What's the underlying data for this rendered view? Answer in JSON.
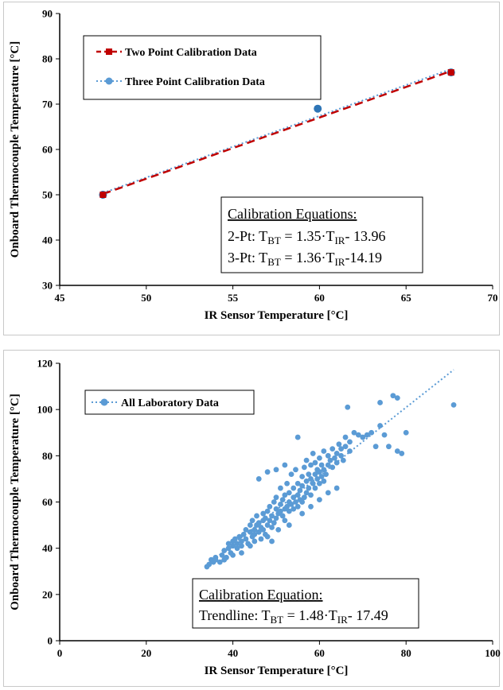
{
  "colors": {
    "two_point": "#c00000",
    "three_point": "#5b9bd5",
    "three_point_marker": "#2e75b6",
    "lab": "#5b9bd5",
    "axis": "#000000"
  },
  "chart_data": [
    {
      "type": "line",
      "xlabel": "IR Sensor Temperature [°C]",
      "ylabel": "Onboard Thermocouple Temperature [°C]",
      "xlim": [
        45,
        70
      ],
      "ylim": [
        30,
        90
      ],
      "xticks": [
        45,
        50,
        55,
        60,
        65,
        70
      ],
      "yticks": [
        30,
        40,
        50,
        60,
        70,
        80,
        90
      ],
      "grid": false,
      "legend_position": "top-left",
      "series": [
        {
          "name": "Two Point Calibration Data",
          "style": "dashed",
          "marker": "square",
          "x": [
            47.5,
            67.6
          ],
          "y": [
            50.0,
            77.0
          ],
          "fit": {
            "slope": 1.35,
            "intercept": -13.96
          }
        },
        {
          "name": "Three Point Calibration Data",
          "style": "dotted",
          "marker": "circle",
          "x": [
            47.5,
            59.9,
            67.6
          ],
          "y": [
            50.0,
            69.0,
            77.0
          ],
          "fit": {
            "slope": 1.36,
            "intercept": -14.19
          }
        }
      ],
      "annotation": {
        "heading": "Calibration Equations:",
        "lines": [
          {
            "prefix": "2-Pt: T",
            "sub1": "BT",
            "mid": " = 1.35·T",
            "sub2": "IR",
            "suffix": "- 13.96"
          },
          {
            "prefix": "3-Pt: T",
            "sub1": "BT",
            "mid": " = 1.36·T",
            "sub2": "IR",
            "suffix": "-14.19"
          }
        ]
      }
    },
    {
      "type": "scatter",
      "xlabel": "IR Sensor Temperature [°C]",
      "ylabel": "Onboard Thermocouple Temperature [°C]",
      "xlim": [
        0,
        100
      ],
      "ylim": [
        0,
        120
      ],
      "xticks": [
        0,
        20,
        40,
        60,
        80,
        100
      ],
      "yticks": [
        0,
        20,
        40,
        60,
        80,
        100,
        120
      ],
      "grid": false,
      "legend_position": "top-left",
      "series": [
        {
          "name": "All Laboratory Data",
          "trendline": {
            "slope": 1.48,
            "intercept": -17.49,
            "x_range": [
              34,
              91
            ]
          },
          "points": [
            [
              34,
              32
            ],
            [
              34.5,
              33
            ],
            [
              35,
              35
            ],
            [
              35.5,
              34
            ],
            [
              36,
              36
            ],
            [
              37,
              34
            ],
            [
              37.5,
              37
            ],
            [
              38,
              39
            ],
            [
              38.5,
              36
            ],
            [
              39,
              40
            ],
            [
              39,
              42
            ],
            [
              39.5,
              38
            ],
            [
              40,
              43
            ],
            [
              40,
              41
            ],
            [
              40.5,
              44
            ],
            [
              41,
              40
            ],
            [
              41,
              42
            ],
            [
              41.5,
              45
            ],
            [
              42,
              43
            ],
            [
              42,
              38
            ],
            [
              42.5,
              46
            ],
            [
              43,
              44
            ],
            [
              43,
              48
            ],
            [
              43.5,
              42
            ],
            [
              44,
              47
            ],
            [
              44,
              50
            ],
            [
              44.5,
              45
            ],
            [
              44.5,
              52
            ],
            [
              45,
              48
            ],
            [
              45,
              46
            ],
            [
              45,
              43
            ],
            [
              45.5,
              50
            ],
            [
              45.5,
              54
            ],
            [
              46,
              47
            ],
            [
              46,
              51
            ],
            [
              46.5,
              49
            ],
            [
              46.5,
              44
            ],
            [
              47,
              52
            ],
            [
              47,
              48
            ],
            [
              47,
              55
            ],
            [
              47.5,
              46
            ],
            [
              47.5,
              53
            ],
            [
              48,
              50
            ],
            [
              48,
              56
            ],
            [
              48,
              45
            ],
            [
              48.5,
              52
            ],
            [
              48.5,
              58
            ],
            [
              49,
              49
            ],
            [
              49,
              54
            ],
            [
              49.5,
              51
            ],
            [
              49.5,
              60
            ],
            [
              50,
              53
            ],
            [
              50,
              57
            ],
            [
              50,
              62
            ],
            [
              50.5,
              55
            ],
            [
              50.5,
              48
            ],
            [
              51,
              56
            ],
            [
              51,
              59
            ],
            [
              51,
              66
            ],
            [
              51.5,
              54
            ],
            [
              51.5,
              61
            ],
            [
              52,
              57
            ],
            [
              52,
              63
            ],
            [
              52,
              52
            ],
            [
              52.5,
              58
            ],
            [
              52.5,
              68
            ],
            [
              53,
              56
            ],
            [
              53,
              60
            ],
            [
              53,
              64
            ],
            [
              53.5,
              59
            ],
            [
              53.5,
              72
            ],
            [
              54,
              57
            ],
            [
              54,
              62
            ],
            [
              54,
              66
            ],
            [
              54.5,
              60
            ],
            [
              54.5,
              74
            ],
            [
              55,
              58
            ],
            [
              55,
              63
            ],
            [
              55,
              68
            ],
            [
              55,
              88
            ],
            [
              55.5,
              61
            ],
            [
              55.5,
              65
            ],
            [
              56,
              60
            ],
            [
              56,
              67
            ],
            [
              56,
              71
            ],
            [
              56.5,
              62
            ],
            [
              56.5,
              75
            ],
            [
              57,
              64
            ],
            [
              57,
              69
            ],
            [
              57,
              78
            ],
            [
              57.5,
              66
            ],
            [
              57.5,
              72
            ],
            [
              58,
              63
            ],
            [
              58,
              70
            ],
            [
              58,
              76
            ],
            [
              58.5,
              68
            ],
            [
              58.5,
              81
            ],
            [
              59,
              72
            ],
            [
              59,
              66
            ],
            [
              59,
              77
            ],
            [
              59.5,
              70
            ],
            [
              59.5,
              74
            ],
            [
              60,
              68
            ],
            [
              60,
              73
            ],
            [
              60,
              79
            ],
            [
              60.5,
              71
            ],
            [
              60.5,
              76
            ],
            [
              61,
              69
            ],
            [
              61,
              74
            ],
            [
              61,
              82
            ],
            [
              61.5,
              72
            ],
            [
              62,
              76
            ],
            [
              62,
              80
            ],
            [
              62.5,
              78
            ],
            [
              63,
              75
            ],
            [
              63,
              83
            ],
            [
              63.5,
              79
            ],
            [
              64,
              81
            ],
            [
              64,
              77
            ],
            [
              64.5,
              85
            ],
            [
              65,
              80
            ],
            [
              65,
              83
            ],
            [
              65.5,
              78
            ],
            [
              66,
              84
            ],
            [
              66,
              88
            ],
            [
              66.5,
              101
            ],
            [
              67,
              82
            ],
            [
              67,
              86
            ],
            [
              68,
              90
            ],
            [
              69,
              89
            ],
            [
              70,
              88
            ],
            [
              71,
              89
            ],
            [
              72,
              90
            ],
            [
              73,
              84
            ],
            [
              74,
              93
            ],
            [
              74,
              103
            ],
            [
              75,
              89
            ],
            [
              76,
              84
            ],
            [
              77,
              106
            ],
            [
              78,
              105
            ],
            [
              78,
              82
            ],
            [
              79,
              81
            ],
            [
              80,
              90
            ],
            [
              91,
              102
            ],
            [
              46,
              70
            ],
            [
              48,
              73
            ],
            [
              50,
              74
            ],
            [
              52,
              76
            ],
            [
              49,
              43
            ],
            [
              53,
              50
            ],
            [
              56,
              55
            ],
            [
              58,
              58
            ],
            [
              60,
              61
            ],
            [
              62,
              64
            ],
            [
              64,
              66
            ],
            [
              44,
              41
            ],
            [
              42,
              41
            ],
            [
              40,
              37
            ],
            [
              38,
              35
            ],
            [
              36,
              35
            ]
          ]
        }
      ],
      "annotation": {
        "heading": "Calibration Equation:",
        "lines": [
          {
            "prefix": "Trendline: T",
            "sub1": "BT",
            "mid": " = 1.48·T",
            "sub2": "IR",
            "suffix": "- 17.49"
          }
        ]
      }
    }
  ]
}
